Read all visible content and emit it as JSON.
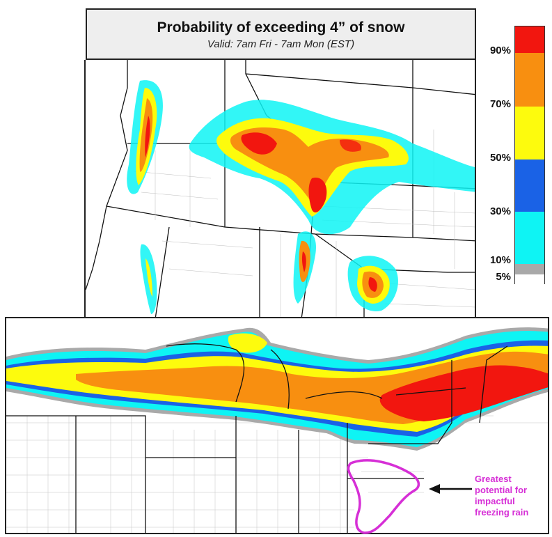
{
  "title": {
    "main": "Probability of exceeding 4” of snow",
    "subtitle": "Valid: 7am Fri - 7am Mon (EST)"
  },
  "legend": {
    "labels": [
      "90%",
      "70%",
      "50%",
      "30%",
      "10%",
      "5%"
    ],
    "bands": [
      {
        "range": "90-100%",
        "color": "#f2160f"
      },
      {
        "range": "70-90%",
        "color": "#f88f10"
      },
      {
        "range": "50-70%",
        "color": "#fdfb0d"
      },
      {
        "range": "30-50%",
        "color": "#1a62e6"
      },
      {
        "range": "10-30%",
        "color": "#0ef4f4"
      },
      {
        "range": "5-10%",
        "color": "#a9a9a9"
      },
      {
        "range": "0-5%",
        "color": "#ffffff"
      }
    ]
  },
  "annotation": {
    "lines": [
      "Greatest",
      "potential for",
      "impactful",
      "freezing rain"
    ],
    "color": "#d62fd6"
  }
}
